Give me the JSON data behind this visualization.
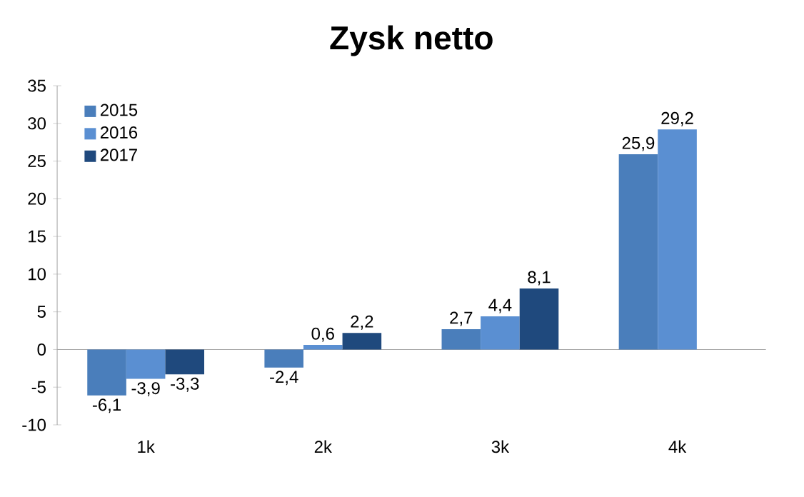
{
  "chart_data": {
    "type": "bar",
    "title": "Zysk netto",
    "categories": [
      "1k",
      "2k",
      "3k",
      "4k"
    ],
    "series": [
      {
        "name": "2015",
        "color": "#4a7ebb",
        "values": [
          -6.1,
          -2.4,
          2.7,
          25.9
        ],
        "value_labels": [
          "-6,1",
          "-2,4",
          "2,7",
          "25,9"
        ]
      },
      {
        "name": "2016",
        "color": "#5a8fd2",
        "values": [
          -3.9,
          0.6,
          4.4,
          29.2
        ],
        "value_labels": [
          "-3,9",
          "0,6",
          "4,4",
          "29,2"
        ]
      },
      {
        "name": "2017",
        "color": "#1f497d",
        "values": [
          -3.3,
          2.2,
          8.1,
          null
        ],
        "value_labels": [
          "-3,3",
          "2,2",
          "8,1",
          null
        ]
      }
    ],
    "ylim": [
      -10,
      35
    ],
    "yticks": [
      -10,
      -5,
      0,
      5,
      10,
      15,
      20,
      25,
      30,
      35
    ],
    "legend": "top left"
  }
}
